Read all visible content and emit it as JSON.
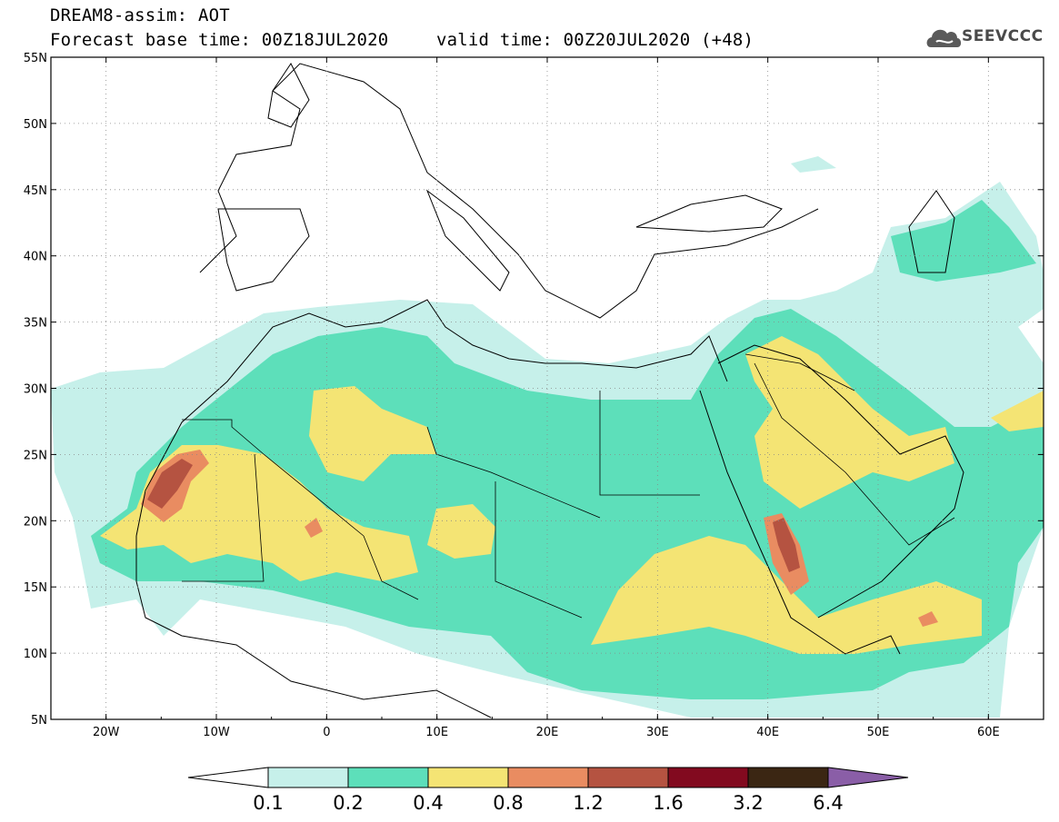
{
  "header": {
    "line1": "DREAM8-assim: AOT",
    "line2": "Forecast base time: 00Z18JUL2020",
    "line2b": "valid time: 00Z20JUL2020 (+48)",
    "logo_text": "SEEVCCC"
  },
  "map": {
    "lon_range": [
      -25,
      65
    ],
    "lat_range": [
      5,
      55
    ],
    "lat_labels": [
      "5N",
      "10N",
      "15N",
      "20N",
      "25N",
      "30N",
      "35N",
      "40N",
      "45N",
      "50N",
      "55N"
    ],
    "lon_labels": [
      "20W",
      "10W",
      "0",
      "10E",
      "20E",
      "30E",
      "40E",
      "50E",
      "60E"
    ],
    "grid": "dotted",
    "field": "Aerosol Optical Thickness"
  },
  "colorbar": {
    "labels": [
      "0.1",
      "0.2",
      "0.4",
      "0.8",
      "1.2",
      "1.6",
      "3.2",
      "6.4"
    ],
    "colors": [
      "#c6f0ea",
      "#5ddfba",
      "#f4e474",
      "#e98c61",
      "#b55341",
      "#820a1f",
      "#3b2613",
      "#8a5ea7"
    ],
    "under_color": "#ffffff"
  },
  "colors": {
    "c01": "#c6f0ea",
    "c02": "#5ddfba",
    "c04": "#f4e474",
    "c08": "#e98c61",
    "c12": "#b55341",
    "c16": "#820a1f"
  }
}
